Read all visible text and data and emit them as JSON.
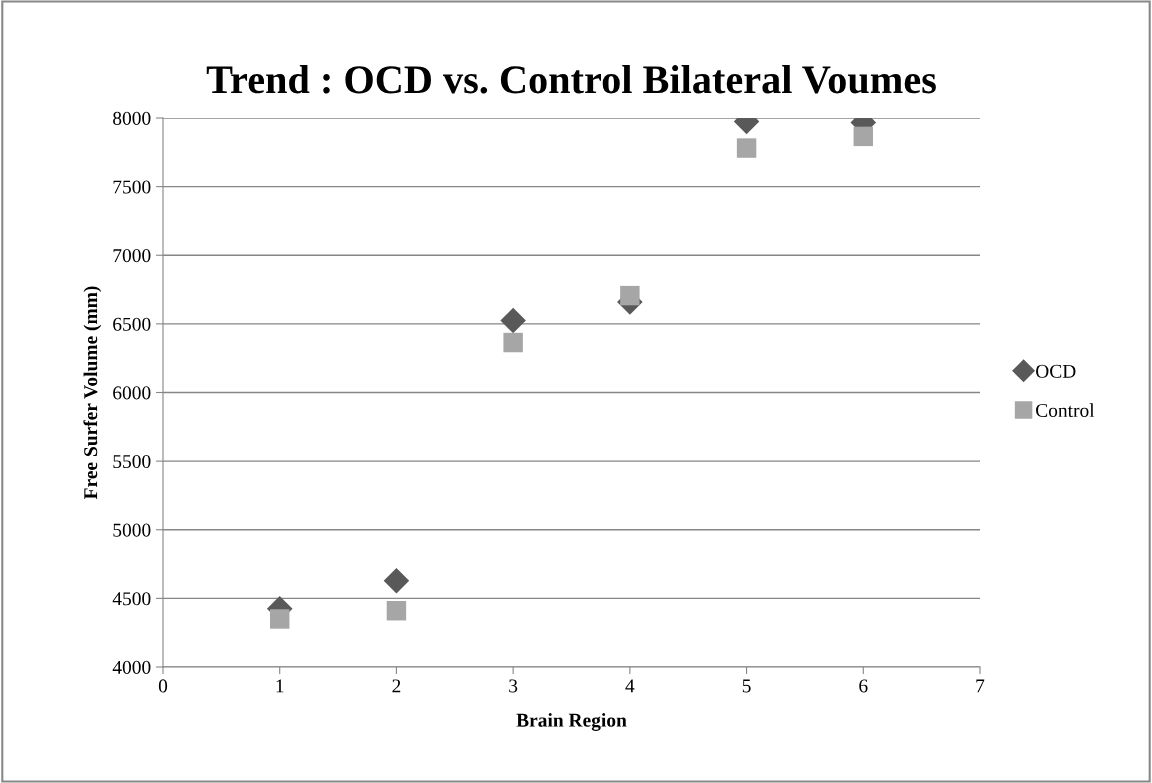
{
  "chart_data": {
    "type": "scatter",
    "title": "Trend : OCD vs. Control Bilateral Voumes",
    "xlabel": "Brain Region",
    "ylabel": "Free Surfer Volume (mm)",
    "x": [
      1,
      2,
      3,
      4,
      5,
      6
    ],
    "series": [
      {
        "name": "OCD",
        "color": "#595959",
        "marker": "diamond",
        "values": [
          4424,
          4628,
          6524,
          6660,
          7975,
          7968
        ]
      },
      {
        "name": "Control",
        "color": "#a6a6a6",
        "marker": "square",
        "values": [
          4350,
          4410,
          6364,
          6706,
          7781,
          7866
        ]
      }
    ],
    "xlim": [
      0,
      7
    ],
    "xticks": [
      0,
      1,
      2,
      3,
      4,
      5,
      6,
      7
    ],
    "ylim": [
      4000,
      8000
    ],
    "yticks": [
      4000,
      4500,
      5000,
      5500,
      6000,
      6500,
      7000,
      7500,
      8000
    ],
    "grid": "y",
    "legend": "right"
  }
}
